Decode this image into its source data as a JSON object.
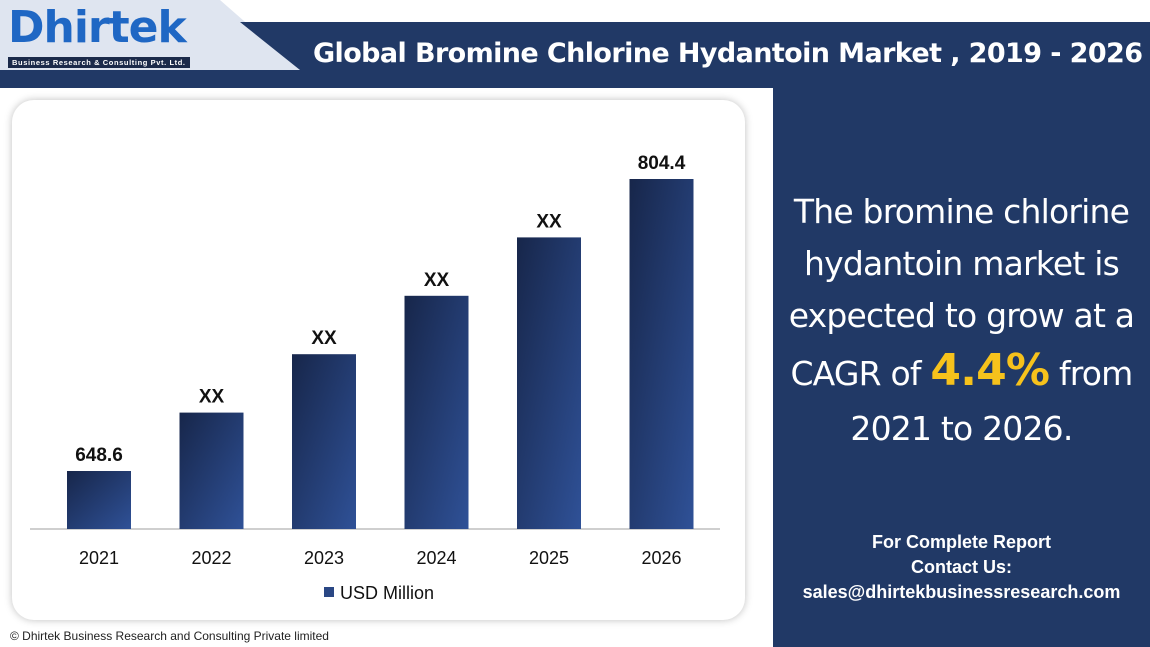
{
  "logo": {
    "text": "Dhirtek",
    "tagline": "Business Research & Consulting Pvt. Ltd."
  },
  "title": "Global Bromine Chlorine Hydantoin Market , 2019 - 2026",
  "chart_data": {
    "type": "bar",
    "categories": [
      "2021",
      "2022",
      "2023",
      "2024",
      "2025",
      "2026"
    ],
    "values": [
      648.6,
      null,
      null,
      null,
      null,
      804.4
    ],
    "data_labels": [
      "648.6",
      "XX",
      "XX",
      "XX",
      "XX",
      "804.4"
    ],
    "series": [
      {
        "name": "USD Million",
        "values": [
          648.6,
          null,
          null,
          null,
          null,
          804.4
        ]
      }
    ],
    "legend": "bottom",
    "grid": false,
    "bar_color": "#2a4784"
  },
  "blurb": {
    "l1": "The bromine chlorine",
    "l2": "hydantoin market is",
    "l3": "expected to grow at a",
    "l4a": "CAGR of",
    "cagr": "4.4%",
    "l4b": "from",
    "l5": "2021 to 2026."
  },
  "contact": {
    "l1": "For Complete Report",
    "l2": "Contact Us:",
    "email": "sales@dhirtekbusinessresearch.com"
  },
  "footer": "© Dhirtek Business Research and Consulting Private limited",
  "colors": {
    "navy": "#213966",
    "accent": "#f6c21c"
  }
}
